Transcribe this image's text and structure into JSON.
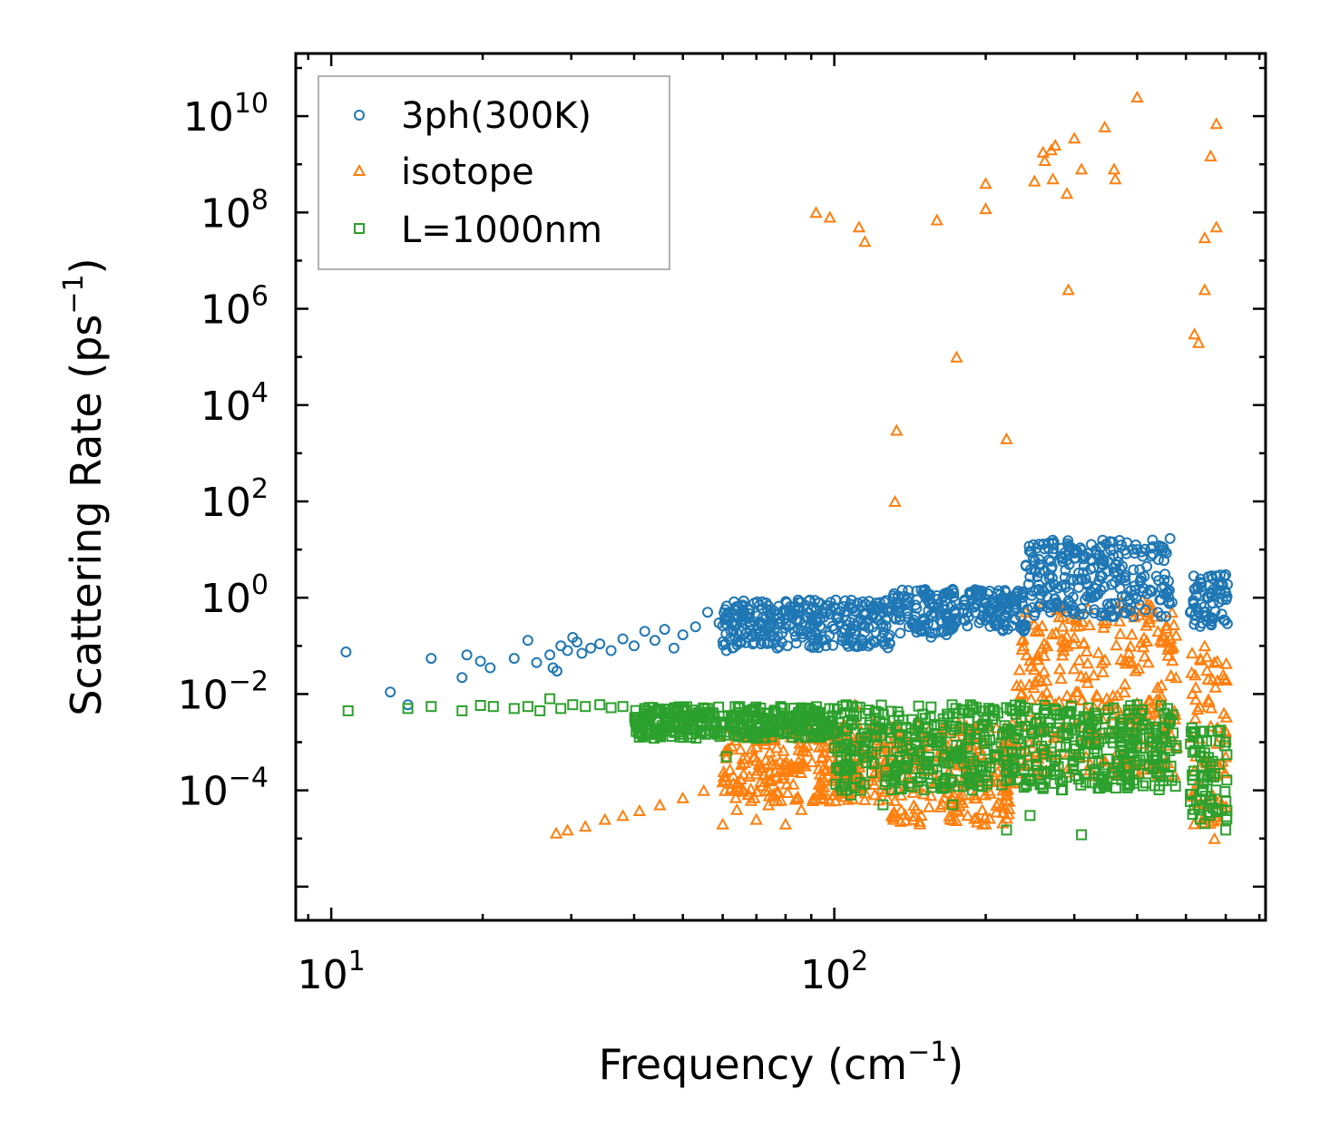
{
  "chart_data": {
    "type": "scatter",
    "xlabel": "Frequency (cm",
    "xlabel_sup": "−1",
    "xlabel_end": ")",
    "ylabel": "Scattering Rate (ps",
    "ylabel_sup": "−1",
    "ylabel_end": ")",
    "xscale": "log",
    "yscale": "log",
    "xlim": [
      8.5,
      720
    ],
    "ylim": [
      2e-07,
      200000000000
    ],
    "x_ticks": [
      {
        "value": 10,
        "base": "10",
        "exp": "1"
      },
      {
        "value": 100,
        "base": "10",
        "exp": "2"
      }
    ],
    "y_ticks": [
      {
        "value": 0.0001,
        "base": "10",
        "exp": "−4"
      },
      {
        "value": 0.01,
        "base": "10",
        "exp": "−2"
      },
      {
        "value": 1,
        "base": "10",
        "exp": "0"
      },
      {
        "value": 100,
        "base": "10",
        "exp": "2"
      },
      {
        "value": 10000,
        "base": "10",
        "exp": "4"
      },
      {
        "value": 1000000,
        "base": "10",
        "exp": "6"
      },
      {
        "value": 100000000,
        "base": "10",
        "exp": "8"
      },
      {
        "value": 10000000000,
        "base": "10",
        "exp": "10"
      }
    ],
    "legend": {
      "placement": "top-left",
      "entries": [
        "3ph(300K)",
        "isotope",
        "L=1000nm"
      ]
    },
    "series": [
      {
        "name": "3ph(300K)",
        "marker": "circle",
        "color": "#1f77b4",
        "points": [
          [
            10.7,
            0.075
          ],
          [
            13.1,
            0.011
          ],
          [
            14.2,
            0.006
          ],
          [
            15.8,
            0.055
          ],
          [
            18.2,
            0.022
          ],
          [
            18.6,
            0.065
          ],
          [
            19.8,
            0.048
          ],
          [
            20.7,
            0.035
          ],
          [
            23.1,
            0.055
          ],
          [
            24.6,
            0.13
          ],
          [
            25.6,
            0.045
          ],
          [
            27.2,
            0.065
          ],
          [
            27.6,
            0.035
          ],
          [
            28.1,
            0.03
          ],
          [
            28.6,
            0.1
          ],
          [
            29.5,
            0.08
          ],
          [
            30.2,
            0.15
          ],
          [
            30.8,
            0.12
          ],
          [
            31.5,
            0.07
          ],
          [
            32.8,
            0.09
          ],
          [
            34.2,
            0.11
          ],
          [
            36.0,
            0.08
          ],
          [
            38.0,
            0.14
          ],
          [
            40.0,
            0.1
          ],
          [
            42.0,
            0.2
          ],
          [
            44.0,
            0.13
          ],
          [
            46.0,
            0.22
          ],
          [
            48.0,
            0.09
          ],
          [
            50.0,
            0.17
          ],
          [
            53.0,
            0.25
          ],
          [
            56.0,
            0.5
          ],
          [
            59.0,
            0.3
          ],
          [
            61.0,
            0.08
          ],
          [
            63.0,
            0.2
          ],
          [
            66.0,
            0.4
          ],
          [
            72.0,
            0.6
          ],
          [
            77.0,
            0.09
          ],
          [
            84.0,
            0.35
          ],
          [
            92.0,
            0.55
          ],
          [
            102.0,
            0.4
          ],
          [
            113.0,
            0.35
          ],
          [
            125.0,
            0.25
          ],
          [
            135.0,
            0.4
          ],
          [
            145.0,
            0.7
          ],
          [
            160.0,
            1.1
          ],
          [
            172.0,
            1.5
          ],
          [
            185.0,
            0.4
          ],
          [
            192.0,
            1.4
          ],
          [
            200.0,
            0.8
          ],
          [
            215.0,
            0.6
          ],
          [
            230.0,
            1.2
          ],
          [
            255.0,
            1.5
          ],
          [
            270.0,
            4.0
          ],
          [
            290.0,
            6.0
          ],
          [
            310.0,
            2.5
          ],
          [
            340.0,
            6.0
          ],
          [
            370.0,
            4.0
          ],
          [
            400.0,
            10.0
          ],
          [
            430.0,
            8.0
          ],
          [
            465.0,
            17.0
          ],
          [
            520.0,
            1.5
          ],
          [
            545.0,
            0.5
          ],
          [
            565.0,
            2.5
          ],
          [
            600.0,
            3.0
          ]
        ]
      },
      {
        "name": "isotope",
        "marker": "triangle",
        "color": "#ff7f0e",
        "points": [
          [
            28.0,
            1.3e-05
          ],
          [
            29.5,
            1.5e-05
          ],
          [
            32.0,
            1.8e-05
          ],
          [
            35.0,
            2.5e-05
          ],
          [
            38.0,
            3e-05
          ],
          [
            41.0,
            3.8e-05
          ],
          [
            45.0,
            5e-05
          ],
          [
            50.0,
            7e-05
          ],
          [
            55.0,
            0.0001
          ],
          [
            60.0,
            0.00015
          ],
          [
            66.0,
            0.00022
          ],
          [
            72.0,
            0.0003
          ],
          [
            78.0,
            0.0004
          ],
          [
            85.0,
            0.0007
          ],
          [
            92.0,
            0.0012
          ],
          [
            100.0,
            0.0025
          ],
          [
            110.0,
            0.006
          ],
          [
            115.0,
            0.0008
          ],
          [
            125.0,
            0.0002
          ],
          [
            130.0,
            3e-05
          ],
          [
            132.0,
            100
          ],
          [
            133.0,
            3000
          ],
          [
            60.0,
            2e-05
          ],
          [
            64.0,
            4e-05
          ],
          [
            70.0,
            2.5e-05
          ],
          [
            74.0,
            5e-05
          ],
          [
            80.0,
            2e-05
          ],
          [
            86.0,
            4e-05
          ],
          [
            95.0,
            0.0001
          ],
          [
            98.0,
            6e-05
          ],
          [
            120.0,
            0.0004
          ],
          [
            140.0,
            0.0002
          ],
          [
            150.0,
            0.0008
          ],
          [
            160.0,
            0.00015
          ],
          [
            165.0,
            0.002
          ],
          [
            175.0,
            4e-05
          ],
          [
            190.0,
            0.0005
          ],
          [
            200.0,
            2e-05
          ],
          [
            210.0,
            0.002
          ],
          [
            220.0,
            0.0003
          ],
          [
            235.0,
            0.01
          ],
          [
            245.0,
            0.05
          ],
          [
            255.0,
            0.2
          ],
          [
            265.0,
            0.1
          ],
          [
            280.0,
            0.4
          ],
          [
            300.0,
            0.15
          ],
          [
            320.0,
            0.6
          ],
          [
            345.0,
            0.3
          ],
          [
            370.0,
            0.8
          ],
          [
            395.0,
            0.4
          ],
          [
            410.0,
            0.9
          ],
          [
            440.0,
            0.2
          ],
          [
            470.0,
            0.05
          ],
          [
            520.0,
            0.0001
          ],
          [
            545.0,
            0.1
          ],
          [
            565.0,
            0.02
          ],
          [
            595.0,
            0.004
          ],
          [
            600.0,
            0.0005
          ],
          [
            570.0,
            1e-05
          ],
          [
            92.0,
            100000000
          ],
          [
            98.0,
            80000000
          ],
          [
            112.0,
            50000000
          ],
          [
            115.0,
            25000000
          ],
          [
            160.0,
            70000000
          ],
          [
            175.0,
            100000
          ],
          [
            200.0,
            400000000
          ],
          [
            200.0,
            120000000
          ],
          [
            220.0,
            2000
          ],
          [
            250.0,
            450000000
          ],
          [
            260.0,
            1800000000
          ],
          [
            262.0,
            1200000000
          ],
          [
            270.0,
            2000000000
          ],
          [
            272.0,
            500000000
          ],
          [
            275.0,
            2500000000
          ],
          [
            290.0,
            250000000
          ],
          [
            292.0,
            2500000
          ],
          [
            300.0,
            3500000000
          ],
          [
            310.0,
            800000000
          ],
          [
            345.0,
            6000000000
          ],
          [
            360.0,
            800000000
          ],
          [
            362.0,
            500000000
          ],
          [
            400.0,
            25000000000
          ],
          [
            520.0,
            300000
          ],
          [
            530.0,
            200000
          ],
          [
            545.0,
            30000000
          ],
          [
            545.0,
            2500000
          ],
          [
            560.0,
            1500000000
          ],
          [
            575.0,
            7000000000
          ],
          [
            575.0,
            50000000
          ]
        ]
      },
      {
        "name": "L=1000nm",
        "marker": "square",
        "color": "#2ca02c",
        "points": [
          [
            10.8,
            0.0045
          ],
          [
            14.2,
            0.005
          ],
          [
            15.8,
            0.0055
          ],
          [
            18.2,
            0.0045
          ],
          [
            19.8,
            0.0058
          ],
          [
            21.0,
            0.0055
          ],
          [
            23.1,
            0.005
          ],
          [
            24.6,
            0.0055
          ],
          [
            26.0,
            0.0045
          ],
          [
            27.2,
            0.008
          ],
          [
            28.6,
            0.005
          ],
          [
            30.2,
            0.006
          ],
          [
            32.0,
            0.0055
          ],
          [
            34.2,
            0.006
          ],
          [
            36.0,
            0.0052
          ],
          [
            38.0,
            0.0055
          ],
          [
            42.0,
            0.005
          ],
          [
            46.0,
            0.0048
          ],
          [
            50.0,
            0.0045
          ],
          [
            56.0,
            0.0042
          ],
          [
            61.0,
            0.0005
          ],
          [
            63.0,
            0.002
          ],
          [
            66.0,
            0.0035
          ],
          [
            72.0,
            0.003
          ],
          [
            77.0,
            0.0025
          ],
          [
            84.0,
            0.0022
          ],
          [
            92.0,
            0.0018
          ],
          [
            100.0,
            0.0015
          ],
          [
            102.0,
            0.0003
          ],
          [
            108.0,
            8e-05
          ],
          [
            113.0,
            0.0012
          ],
          [
            125.0,
            5e-05
          ],
          [
            135.0,
            0.001
          ],
          [
            145.0,
            0.0009
          ],
          [
            160.0,
            0.0002
          ],
          [
            165.0,
            0.0025
          ],
          [
            172.0,
            5e-05
          ],
          [
            185.0,
            0.0011
          ],
          [
            192.0,
            0.0015
          ],
          [
            200.0,
            0.0002
          ],
          [
            210.0,
            0.0008
          ],
          [
            220.0,
            1.5e-05
          ],
          [
            230.0,
            0.0006
          ],
          [
            245.0,
            3e-05
          ],
          [
            255.0,
            0.0018
          ],
          [
            270.0,
            0.0005
          ],
          [
            290.0,
            0.002
          ],
          [
            310.0,
            1.2e-05
          ],
          [
            330.0,
            0.004
          ],
          [
            345.0,
            0.0003
          ],
          [
            370.0,
            0.0008
          ],
          [
            400.0,
            0.006
          ],
          [
            430.0,
            0.001
          ],
          [
            465.0,
            0.003
          ],
          [
            520.0,
            4e-05
          ],
          [
            530.0,
            0.001
          ],
          [
            545.0,
            0.0006
          ],
          [
            565.0,
            0.0004
          ],
          [
            590.0,
            4e-05
          ],
          [
            600.0,
            1.5e-05
          ],
          [
            600.0,
            0.001
          ]
        ]
      }
    ],
    "bands": [
      {
        "series": "3ph(300K)",
        "marker": "circle",
        "color": "#1f77b4",
        "from": 60,
        "to": 130,
        "ylow": 0.09,
        "yhigh": 0.9
      },
      {
        "series": "3ph(300K)",
        "marker": "circle",
        "color": "#1f77b4",
        "from": 130,
        "to": 175,
        "ylow": 0.15,
        "yhigh": 1.5
      },
      {
        "series": "3ph(300K)",
        "marker": "circle",
        "color": "#1f77b4",
        "from": 180,
        "to": 240,
        "ylow": 0.2,
        "yhigh": 1.5
      },
      {
        "series": "3ph(300K)",
        "marker": "circle",
        "color": "#1f77b4",
        "from": 240,
        "to": 470,
        "ylow": 0.4,
        "yhigh": 16
      },
      {
        "series": "3ph(300K)",
        "marker": "circle",
        "color": "#1f77b4",
        "from": 510,
        "to": 605,
        "ylow": 0.25,
        "yhigh": 3
      },
      {
        "series": "L=1000nm",
        "marker": "square",
        "color": "#2ca02c",
        "from": 40,
        "to": 100,
        "ylow": 0.0012,
        "yhigh": 0.0055
      },
      {
        "series": "L=1000nm",
        "marker": "square",
        "color": "#2ca02c",
        "from": 100,
        "to": 480,
        "ylow": 0.0001,
        "yhigh": 0.006
      },
      {
        "series": "L=1000nm",
        "marker": "square",
        "color": "#2ca02c",
        "from": 510,
        "to": 605,
        "ylow": 2e-05,
        "yhigh": 0.002
      },
      {
        "series": "isotope",
        "marker": "triangle",
        "color": "#ff7f0e",
        "from": 60,
        "to": 130,
        "ylow": 6e-05,
        "yhigh": 0.0025
      },
      {
        "series": "isotope",
        "marker": "triangle",
        "color": "#ff7f0e",
        "from": 130,
        "to": 230,
        "ylow": 2e-05,
        "yhigh": 0.003
      },
      {
        "series": "isotope",
        "marker": "triangle",
        "color": "#ff7f0e",
        "from": 230,
        "to": 480,
        "ylow": 0.0002,
        "yhigh": 0.8
      },
      {
        "series": "isotope",
        "marker": "triangle",
        "color": "#ff7f0e",
        "from": 510,
        "to": 605,
        "ylow": 2e-05,
        "yhigh": 0.08
      }
    ]
  }
}
